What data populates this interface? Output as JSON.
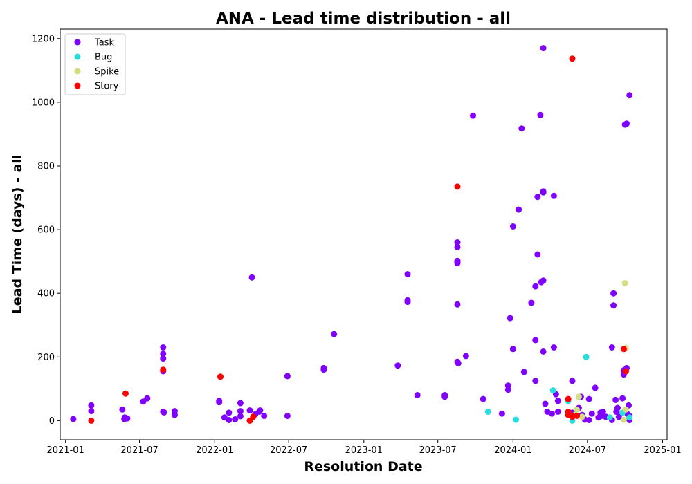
{
  "chart_data": {
    "type": "scatter",
    "title": "ANA - Lead time distribution - all",
    "xlabel": "Resolution Date",
    "ylabel": "Lead Time (days) - all",
    "xlim": [
      "2020-12-19",
      "2025-01-12"
    ],
    "ylim": [
      -60,
      1230
    ],
    "x_ticks": [
      "2021-01",
      "2021-07",
      "2022-01",
      "2022-07",
      "2023-01",
      "2023-07",
      "2024-01",
      "2024-07",
      "2025-01"
    ],
    "y_ticks": [
      0,
      200,
      400,
      600,
      800,
      1000,
      1200
    ],
    "grid": false,
    "legend_position": "top-left",
    "series": [
      {
        "name": "Task",
        "color": "#8000ff",
        "points": [
          [
            "2021-01-20",
            5
          ],
          [
            "2021-03-05",
            48
          ],
          [
            "2021-03-05",
            30
          ],
          [
            "2021-05-20",
            35
          ],
          [
            "2021-05-25",
            5
          ],
          [
            "2021-05-28",
            8
          ],
          [
            "2021-06-01",
            7
          ],
          [
            "2021-05-26",
            10
          ],
          [
            "2021-07-10",
            60
          ],
          [
            "2021-07-20",
            70
          ],
          [
            "2021-08-28",
            230
          ],
          [
            "2021-08-28",
            210
          ],
          [
            "2021-08-28",
            195
          ],
          [
            "2021-08-28",
            155
          ],
          [
            "2021-08-28",
            28
          ],
          [
            "2021-08-30",
            26
          ],
          [
            "2021-09-25",
            30
          ],
          [
            "2021-09-25",
            18
          ],
          [
            "2022-01-12",
            58
          ],
          [
            "2022-01-12",
            62
          ],
          [
            "2022-01-25",
            10
          ],
          [
            "2022-02-05",
            25
          ],
          [
            "2022-02-05",
            2
          ],
          [
            "2022-02-20",
            4
          ],
          [
            "2022-03-05",
            55
          ],
          [
            "2022-03-05",
            30
          ],
          [
            "2022-03-05",
            14
          ],
          [
            "2022-03-28",
            32
          ],
          [
            "2022-04-02",
            450
          ],
          [
            "2022-04-10",
            20
          ],
          [
            "2022-04-20",
            28
          ],
          [
            "2022-04-22",
            32
          ],
          [
            "2022-05-02",
            15
          ],
          [
            "2022-06-28",
            140
          ],
          [
            "2022-06-28",
            15
          ],
          [
            "2022-09-25",
            165
          ],
          [
            "2022-09-25",
            160
          ],
          [
            "2022-10-20",
            272
          ],
          [
            "2023-03-25",
            173
          ],
          [
            "2023-04-18",
            460
          ],
          [
            "2023-04-18",
            378
          ],
          [
            "2023-04-18",
            373
          ],
          [
            "2023-05-12",
            80
          ],
          [
            "2023-07-18",
            80
          ],
          [
            "2023-07-18",
            75
          ],
          [
            "2023-08-18",
            560
          ],
          [
            "2023-08-18",
            545
          ],
          [
            "2023-08-18",
            502
          ],
          [
            "2023-08-18",
            498
          ],
          [
            "2023-08-18",
            495
          ],
          [
            "2023-08-18",
            365
          ],
          [
            "2023-08-18",
            185
          ],
          [
            "2023-08-20",
            180
          ],
          [
            "2023-09-08",
            203
          ],
          [
            "2023-09-25",
            958
          ],
          [
            "2023-10-20",
            68
          ],
          [
            "2023-12-05",
            22
          ],
          [
            "2023-12-20",
            110
          ],
          [
            "2023-12-20",
            97
          ],
          [
            "2023-12-25",
            322
          ],
          [
            "2024-01-01",
            610
          ],
          [
            "2024-01-01",
            225
          ],
          [
            "2024-01-15",
            663
          ],
          [
            "2024-01-22",
            918
          ],
          [
            "2024-01-28",
            153
          ],
          [
            "2024-02-15",
            370
          ],
          [
            "2024-02-25",
            422
          ],
          [
            "2024-02-25",
            253
          ],
          [
            "2024-02-25",
            125
          ],
          [
            "2024-03-01",
            522
          ],
          [
            "2024-03-01",
            703
          ],
          [
            "2024-03-08",
            960
          ],
          [
            "2024-03-10",
            435
          ],
          [
            "2024-03-15",
            1170
          ],
          [
            "2024-03-15",
            720
          ],
          [
            "2024-03-15",
            717
          ],
          [
            "2024-03-15",
            440
          ],
          [
            "2024-03-15",
            217
          ],
          [
            "2024-03-20",
            53
          ],
          [
            "2024-03-25",
            28
          ],
          [
            "2024-04-05",
            22
          ],
          [
            "2024-04-10",
            230
          ],
          [
            "2024-04-10",
            706
          ],
          [
            "2024-04-15",
            83
          ],
          [
            "2024-04-20",
            62
          ],
          [
            "2024-04-20",
            28
          ],
          [
            "2024-05-25",
            125
          ],
          [
            "2024-05-25",
            25
          ],
          [
            "2024-06-10",
            40
          ],
          [
            "2024-06-15",
            75
          ],
          [
            "2024-06-18",
            18
          ],
          [
            "2024-06-20",
            10
          ],
          [
            "2024-06-25",
            3
          ],
          [
            "2024-07-05",
            68
          ],
          [
            "2024-07-05",
            2
          ],
          [
            "2024-07-12",
            22
          ],
          [
            "2024-07-20",
            103
          ],
          [
            "2024-07-28",
            10
          ],
          [
            "2024-08-02",
            25
          ],
          [
            "2024-08-05",
            15
          ],
          [
            "2024-08-08",
            28
          ],
          [
            "2024-08-15",
            12
          ],
          [
            "2024-08-30",
            2
          ],
          [
            "2024-08-30",
            230
          ],
          [
            "2024-09-03",
            362
          ],
          [
            "2024-09-03",
            400
          ],
          [
            "2024-09-08",
            65
          ],
          [
            "2024-09-10",
            28
          ],
          [
            "2024-09-13",
            40
          ],
          [
            "2024-09-16",
            12
          ],
          [
            "2024-09-25",
            70
          ],
          [
            "2024-09-28",
            145
          ],
          [
            "2024-09-28",
            158
          ],
          [
            "2024-10-01",
            930
          ],
          [
            "2024-10-05",
            165
          ],
          [
            "2024-10-05",
            933
          ],
          [
            "2024-10-08",
            20
          ],
          [
            "2024-10-10",
            48
          ],
          [
            "2024-10-12",
            1022
          ],
          [
            "2024-10-12",
            2
          ],
          [
            "2024-10-12",
            15
          ]
        ]
      },
      {
        "name": "Bug",
        "color": "#2adddd",
        "points": [
          [
            "2023-11-01",
            28
          ],
          [
            "2024-01-08",
            3
          ],
          [
            "2024-04-08",
            95
          ],
          [
            "2024-05-15",
            62
          ],
          [
            "2024-05-25",
            0
          ],
          [
            "2024-06-28",
            200
          ],
          [
            "2024-08-25",
            10
          ],
          [
            "2024-09-25",
            25
          ],
          [
            "2024-10-12",
            10
          ]
        ]
      },
      {
        "name": "Spike",
        "color": "#d4dd80",
        "points": [
          [
            "2024-06-01",
            18
          ],
          [
            "2024-06-05",
            35
          ],
          [
            "2024-06-10",
            75
          ],
          [
            "2024-06-18",
            12
          ],
          [
            "2024-09-28",
            3
          ],
          [
            "2024-10-01",
            432
          ],
          [
            "2024-10-03",
            228
          ],
          [
            "2024-10-03",
            35
          ]
        ]
      },
      {
        "name": "Story",
        "color": "#ff0000",
        "points": [
          [
            "2021-03-05",
            0
          ],
          [
            "2021-05-28",
            85
          ],
          [
            "2021-08-28",
            160
          ],
          [
            "2022-01-15",
            138
          ],
          [
            "2022-03-28",
            0
          ],
          [
            "2022-04-05",
            12
          ],
          [
            "2023-08-18",
            735
          ],
          [
            "2024-05-25",
            1137
          ],
          [
            "2024-05-15",
            68
          ],
          [
            "2024-05-15",
            28
          ],
          [
            "2024-05-15",
            18
          ],
          [
            "2024-05-25",
            15
          ],
          [
            "2024-05-25",
            12
          ],
          [
            "2024-06-05",
            15
          ],
          [
            "2024-09-28",
            225
          ],
          [
            "2024-10-03",
            155
          ]
        ]
      }
    ]
  }
}
